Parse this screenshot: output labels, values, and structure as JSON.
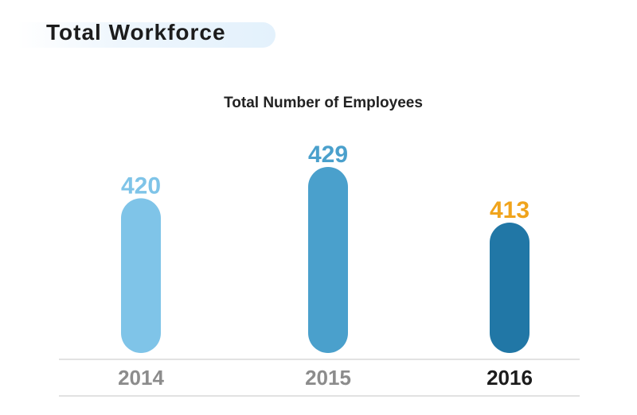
{
  "header": {
    "title": "Total Workforce"
  },
  "chart_data": {
    "type": "bar",
    "title": "Total Number of Employees",
    "categories": [
      "2014",
      "2015",
      "2016"
    ],
    "values": [
      420,
      429,
      413
    ],
    "ylim": [
      0,
      429
    ],
    "bar_colors": [
      "#7fc4e8",
      "#4aa0cc",
      "#2177a6"
    ],
    "value_label_colors": [
      "#7fc4e8",
      "#4aa0cc",
      "#f0a41c"
    ],
    "category_label_colors": [
      "#8c8c8c",
      "#8c8c8c",
      "#1c1c1c"
    ],
    "grid": false,
    "legend": "none"
  }
}
